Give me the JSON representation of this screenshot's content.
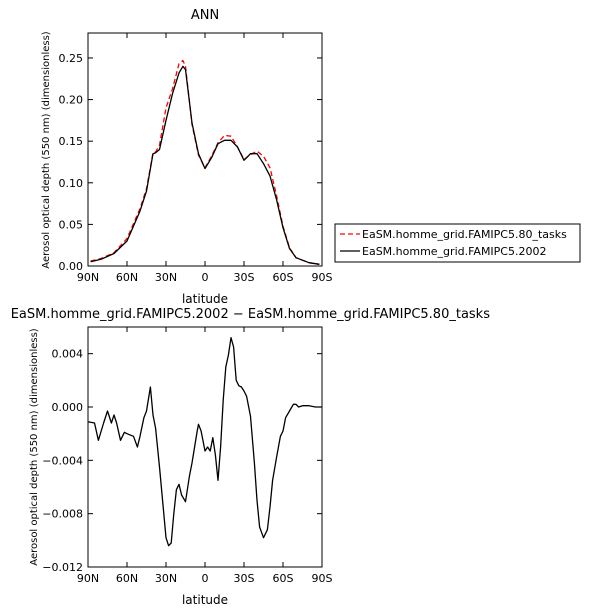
{
  "chart_data": [
    {
      "type": "line",
      "title": "ANN",
      "xlabel": "latitude",
      "ylabel": "Aerosol optical depth (550 nm) (dimensionless)",
      "x_ticks": [
        90,
        60,
        30,
        0,
        -30,
        -60,
        -90
      ],
      "x_tick_labels": [
        "90N",
        "60N",
        "30N",
        "0",
        "30S",
        "60S",
        "90S"
      ],
      "xlim": [
        90,
        -90
      ],
      "ylim": [
        0,
        0.28
      ],
      "y_ticks": [
        0.0,
        0.05,
        0.1,
        0.15,
        0.2,
        0.25
      ],
      "y_tick_labels": [
        "0.00",
        "0.05",
        "0.10",
        "0.15",
        "0.20",
        "0.25"
      ],
      "legend_placement": "right",
      "series": [
        {
          "name": "EaSM.homme_grid.FAMIPC5.80_tasks",
          "color": "#ff0000",
          "dash": "dashed",
          "x": [
            88,
            80,
            70,
            60,
            50,
            45,
            40,
            38,
            35,
            30,
            25,
            20,
            17,
            15,
            10,
            5,
            0,
            -5,
            -10,
            -15,
            -20,
            -25,
            -30,
            -35,
            -40,
            -45,
            -50,
            -55,
            -60,
            -65,
            -70,
            -80,
            -88
          ],
          "y": [
            0.006,
            0.009,
            0.016,
            0.033,
            0.069,
            0.093,
            0.136,
            0.137,
            0.145,
            0.19,
            0.213,
            0.243,
            0.247,
            0.24,
            0.17,
            0.133,
            0.118,
            0.132,
            0.148,
            0.157,
            0.156,
            0.143,
            0.128,
            0.134,
            0.138,
            0.132,
            0.118,
            0.085,
            0.048,
            0.022,
            0.01,
            0.004,
            0.002
          ]
        },
        {
          "name": "EaSM.homme_grid.FAMIPC5.2002",
          "color": "#000000",
          "dash": "solid",
          "x": [
            88,
            80,
            70,
            60,
            50,
            45,
            40,
            38,
            35,
            30,
            25,
            20,
            17,
            15,
            10,
            5,
            0,
            -5,
            -10,
            -15,
            -20,
            -25,
            -30,
            -35,
            -40,
            -45,
            -50,
            -55,
            -60,
            -65,
            -70,
            -80,
            -88
          ],
          "y": [
            0.005,
            0.008,
            0.015,
            0.03,
            0.066,
            0.09,
            0.135,
            0.136,
            0.14,
            0.175,
            0.207,
            0.232,
            0.24,
            0.236,
            0.172,
            0.135,
            0.117,
            0.13,
            0.147,
            0.151,
            0.151,
            0.143,
            0.127,
            0.135,
            0.135,
            0.123,
            0.108,
            0.08,
            0.046,
            0.021,
            0.01,
            0.004,
            0.002
          ]
        }
      ]
    },
    {
      "type": "line",
      "title": "EaSM.homme_grid.FAMIPC5.2002 − EaSM.homme_grid.FAMIPC5.80_tasks",
      "xlabel": "latitude",
      "ylabel": "Aerosol optical depth (550 nm) (dimensionless)",
      "x_ticks": [
        90,
        60,
        30,
        0,
        -30,
        -60,
        -90
      ],
      "x_tick_labels": [
        "90N",
        "60N",
        "30N",
        "0",
        "30S",
        "60S",
        "90S"
      ],
      "xlim": [
        90,
        -90
      ],
      "ylim": [
        -0.012,
        0.006
      ],
      "y_ticks": [
        -0.012,
        -0.008,
        -0.004,
        0.0,
        0.004
      ],
      "y_tick_labels": [
        "−0.012",
        "−0.008",
        "−0.004",
        "0.000",
        "0.004"
      ],
      "series": [
        {
          "color": "#000000",
          "dash": "solid",
          "x": [
            90,
            85,
            82,
            78,
            75,
            72,
            70,
            68,
            65,
            62,
            60,
            55,
            52,
            50,
            47,
            45,
            42,
            40,
            38,
            35,
            30,
            28,
            26,
            24,
            22,
            20,
            18,
            15,
            12,
            10,
            8,
            6,
            5,
            3,
            0,
            -2,
            -4,
            -6,
            -8,
            -10,
            -12,
            -14,
            -16,
            -18,
            -20,
            -22,
            -24,
            -26,
            -28,
            -30,
            -32,
            -35,
            -38,
            -40,
            -42,
            -45,
            -48,
            -50,
            -52,
            -55,
            -58,
            -60,
            -62,
            -65,
            -68,
            -70,
            -72,
            -75,
            -78,
            -80,
            -85,
            -90
          ],
          "y": [
            -0.0011,
            -0.0012,
            -0.0025,
            -0.0012,
            -0.0003,
            -0.0012,
            -0.0006,
            -0.0012,
            -0.0025,
            -0.0019,
            -0.002,
            -0.0022,
            -0.003,
            -0.0022,
            -0.0008,
            -0.0003,
            0.0015,
            -0.0006,
            -0.0016,
            -0.0045,
            -0.0098,
            -0.0104,
            -0.0102,
            -0.008,
            -0.0062,
            -0.0058,
            -0.0066,
            -0.0071,
            -0.0052,
            -0.0042,
            -0.003,
            -0.0018,
            -0.0013,
            -0.0018,
            -0.0033,
            -0.003,
            -0.0033,
            -0.0023,
            -0.0036,
            -0.0055,
            -0.003,
            0.0005,
            0.003,
            0.0039,
            0.0052,
            0.0045,
            0.002,
            0.0016,
            0.0015,
            0.0012,
            0.0008,
            -0.0007,
            -0.0042,
            -0.007,
            -0.009,
            -0.0098,
            -0.0092,
            -0.0075,
            -0.0055,
            -0.0038,
            -0.0022,
            -0.0018,
            -0.0008,
            -0.0003,
            0.0002,
            0.0002,
            0.0,
            0.0001,
            0.0001,
            0.0001,
            0.0,
            0.0
          ]
        }
      ]
    }
  ]
}
